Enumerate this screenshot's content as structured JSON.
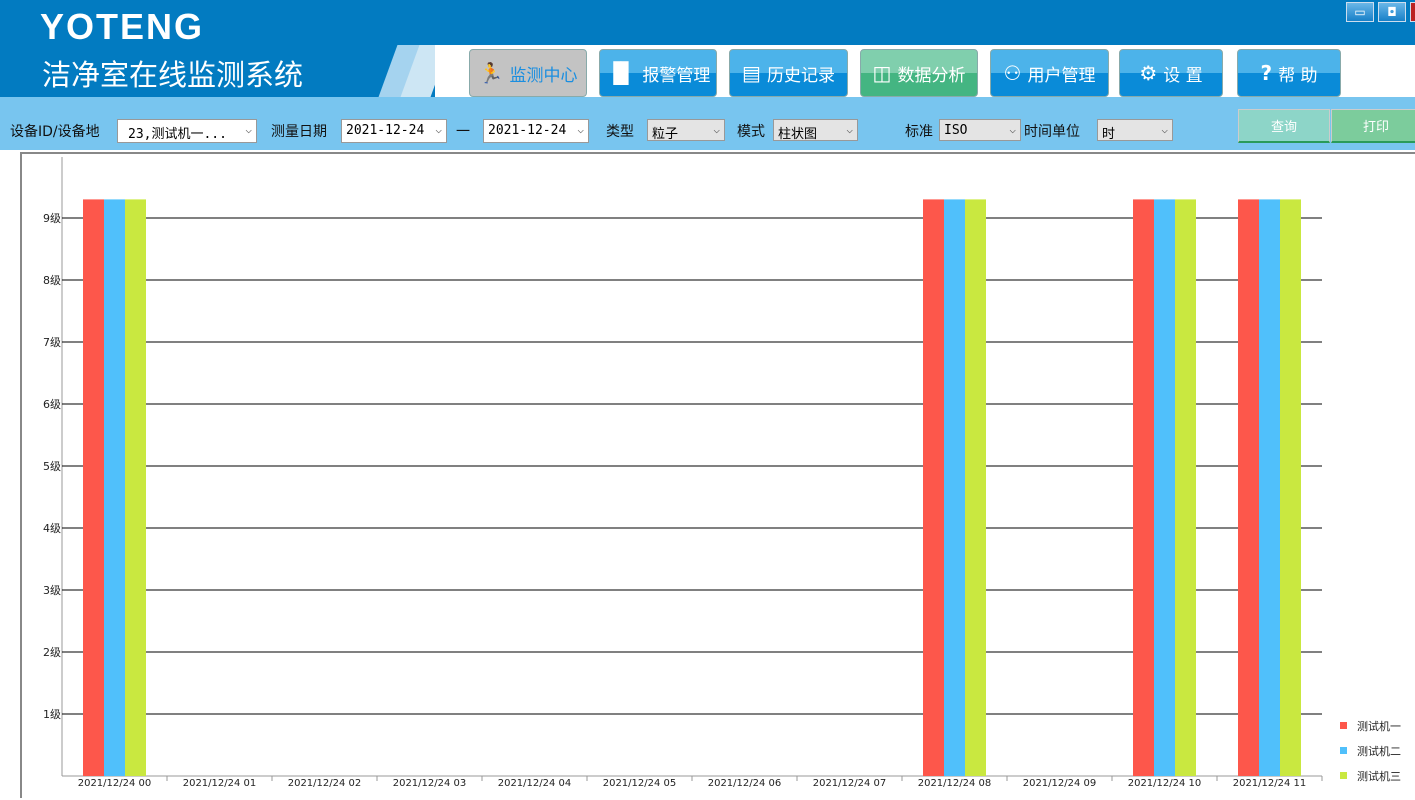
{
  "header": {
    "logo": "YOTENG",
    "title": "洁净室在线监测系统"
  },
  "window_controls": [
    {
      "name": "minimize",
      "glyph": "▭"
    },
    {
      "name": "restore",
      "glyph": "◘"
    }
  ],
  "nav": [
    {
      "label": "监测中心",
      "icon": "running-man-icon",
      "glyph": "🏃",
      "state": "active"
    },
    {
      "label": "报警管理",
      "icon": "bar-chart-icon",
      "glyph": "▐▌",
      "state": "normal"
    },
    {
      "label": "历史记录",
      "icon": "document-icon",
      "glyph": "▤",
      "state": "normal"
    },
    {
      "label": "数据分析",
      "icon": "book-chart-icon",
      "glyph": "◫",
      "state": "selected"
    },
    {
      "label": "用户管理",
      "icon": "users-icon",
      "glyph": "⚇",
      "state": "normal"
    },
    {
      "label": "设 置",
      "icon": "gear-icon",
      "glyph": "⚙",
      "state": "normal"
    },
    {
      "label": "帮 助",
      "icon": "question-icon",
      "glyph": "?",
      "state": "normal"
    }
  ],
  "filters": {
    "device_label": "设备ID/设备地",
    "device_value": "23,测试机一...",
    "date_label": "测量日期",
    "date_from": "2021-12-24",
    "date_sep": "一",
    "date_to": "2021-12-24",
    "type_label": "类型",
    "type_value": "粒子",
    "mode_label": "模式",
    "mode_value": "柱状图",
    "standard_label": "标准",
    "standard_value": "ISO",
    "time_unit_label": "时间单位",
    "time_unit_value": "时",
    "query_label": "查询",
    "print_label": "打印"
  },
  "chart_data": {
    "type": "bar",
    "categories": [
      "2021/12/24 00",
      "2021/12/24 01",
      "2021/12/24 02",
      "2021/12/24 03",
      "2021/12/24 04",
      "2021/12/24 05",
      "2021/12/24 06",
      "2021/12/24 07",
      "2021/12/24 08",
      "2021/12/24 09",
      "2021/12/24 10",
      "2021/12/24 11"
    ],
    "yticks": [
      "1级",
      "2级",
      "3级",
      "4级",
      "5级",
      "6级",
      "7级",
      "8级",
      "9级"
    ],
    "ylim": [
      0,
      9.6
    ],
    "grid": true,
    "legend_position": "bottom-right",
    "series": [
      {
        "name": "测试机一",
        "color": "#fd574b",
        "values": [
          9.3,
          null,
          null,
          null,
          null,
          null,
          null,
          null,
          9.3,
          null,
          9.3,
          9.3
        ]
      },
      {
        "name": "测试机二",
        "color": "#50c0fb",
        "values": [
          9.3,
          null,
          null,
          null,
          null,
          null,
          null,
          null,
          9.3,
          null,
          9.3,
          9.3
        ]
      },
      {
        "name": "测试机三",
        "color": "#c9e840",
        "values": [
          9.3,
          null,
          null,
          null,
          null,
          null,
          null,
          null,
          9.3,
          null,
          9.3,
          9.3
        ]
      }
    ]
  }
}
